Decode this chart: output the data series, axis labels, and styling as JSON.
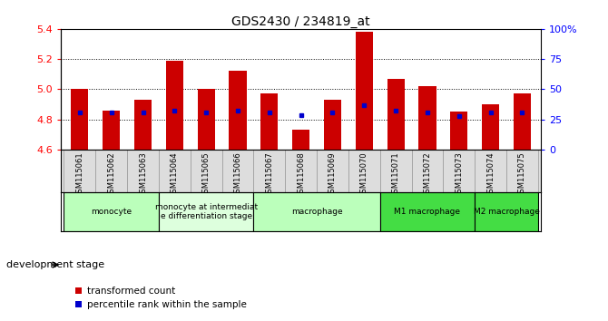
{
  "title": "GDS2430 / 234819_at",
  "samples": [
    "GSM115061",
    "GSM115062",
    "GSM115063",
    "GSM115064",
    "GSM115065",
    "GSM115066",
    "GSM115067",
    "GSM115068",
    "GSM115069",
    "GSM115070",
    "GSM115071",
    "GSM115072",
    "GSM115073",
    "GSM115074",
    "GSM115075"
  ],
  "bar_values": [
    5.0,
    4.86,
    4.93,
    5.19,
    5.0,
    5.12,
    4.97,
    4.73,
    4.93,
    5.38,
    5.07,
    5.02,
    4.85,
    4.9,
    4.97
  ],
  "blue_values": [
    4.845,
    4.845,
    4.845,
    4.855,
    4.845,
    4.855,
    4.845,
    4.825,
    4.845,
    4.895,
    4.855,
    4.845,
    4.82,
    4.845,
    4.845
  ],
  "ylim": [
    4.6,
    5.4
  ],
  "yticks_left": [
    4.6,
    4.8,
    5.0,
    5.2,
    5.4
  ],
  "yticks_right": [
    0,
    25,
    50,
    75,
    100
  ],
  "yticks_right_labels": [
    "0",
    "25",
    "50",
    "75",
    "100%"
  ],
  "bar_color": "#cc0000",
  "blue_color": "#0000cc",
  "bar_bottom": 4.6,
  "groups": [
    {
      "label": "monocyte",
      "start": 0,
      "end": 2,
      "color": "#bbffbb"
    },
    {
      "label": "monocyte at intermediat\ne differentiation stage",
      "start": 3,
      "end": 5,
      "color": "#ddffdd"
    },
    {
      "label": "macrophage",
      "start": 6,
      "end": 9,
      "color": "#bbffbb"
    },
    {
      "label": "M1 macrophage",
      "start": 10,
      "end": 12,
      "color": "#44dd44"
    },
    {
      "label": "M2 macrophage",
      "start": 13,
      "end": 14,
      "color": "#44dd44"
    }
  ],
  "xlabel_dev": "development stage",
  "legend_items": [
    {
      "label": "transformed count",
      "color": "#cc0000"
    },
    {
      "label": "percentile rank within the sample",
      "color": "#0000cc"
    }
  ]
}
